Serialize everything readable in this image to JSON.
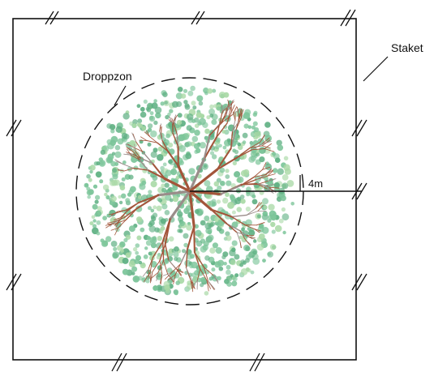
{
  "labels": {
    "drip_zone": "Droppzon",
    "fence": "Staket",
    "radius": "4m"
  },
  "colors": {
    "line": "#111111",
    "foliage_dark": "#5fb083",
    "foliage_mid": "#7cc59a",
    "foliage_light": "#a9d9a6",
    "branch": "#a3553a",
    "branch_grey": "#9a8d8a"
  }
}
